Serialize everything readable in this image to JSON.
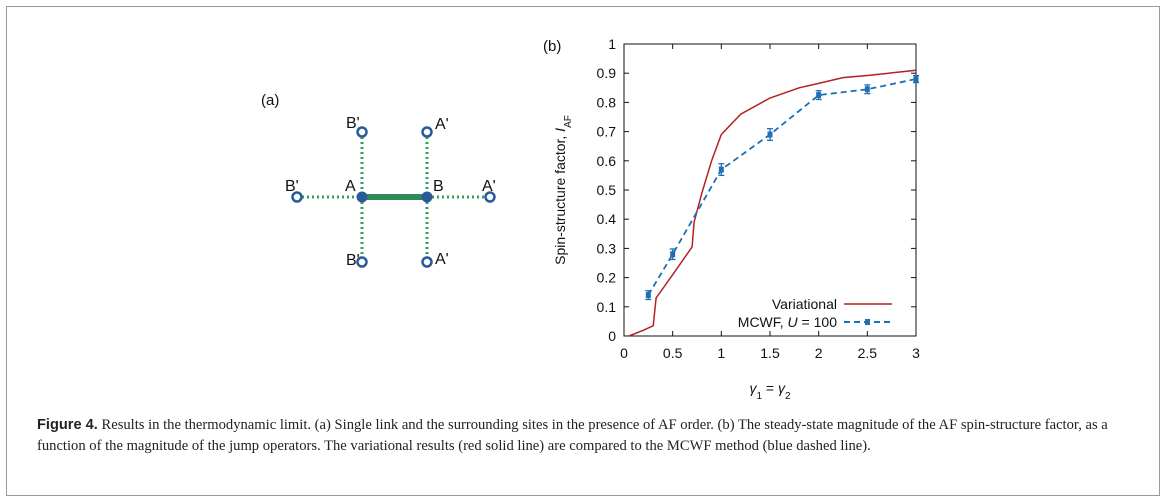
{
  "panel_a": {
    "label": "(a)",
    "sites": {
      "A": "A",
      "B": "B",
      "left_top": "B'",
      "left_out": "B'",
      "left_bottom": "B'",
      "right_top": "A'",
      "right_out": "A'",
      "right_bottom": "A'"
    },
    "colors": {
      "link": "#2e8b57",
      "dotted": "#3a9a5a",
      "site": "#2a5a9a"
    }
  },
  "panel_b": {
    "label": "(b)",
    "ylabel_main": "Spin-structure factor, ",
    "ylabel_sym": "I",
    "ylabel_sub": "AF",
    "xlabel_g1": "γ",
    "xlabel_s1": "1",
    "xlabel_eq": " = ",
    "xlabel_g2": "γ",
    "xlabel_s2": "2",
    "legend_variational": "Variational",
    "legend_mcwf_prefix": "MCWF, ",
    "legend_mcwf_u": "U",
    "legend_mcwf_suffix": " = 100"
  },
  "chart_data": {
    "type": "line",
    "xlim": [
      0,
      3
    ],
    "ylim": [
      0,
      1
    ],
    "xticks": [
      "0",
      "0.5",
      "1",
      "1.5",
      "2",
      "2.5",
      "3"
    ],
    "yticks": [
      "0",
      "0.1",
      "0.2",
      "0.3",
      "0.4",
      "0.5",
      "0.6",
      "0.7",
      "0.8",
      "0.9",
      "1"
    ],
    "legend": "bottom-right",
    "series": [
      {
        "name": "Variational",
        "color": "#b22222",
        "style": "solid",
        "x": [
          0.05,
          0.2,
          0.3,
          0.33,
          0.5,
          0.7,
          0.72,
          0.8,
          0.9,
          1.0,
          1.2,
          1.5,
          1.8,
          2.0,
          2.25,
          2.5,
          3.0
        ],
        "y": [
          0.0,
          0.02,
          0.035,
          0.13,
          0.21,
          0.305,
          0.39,
          0.49,
          0.6,
          0.69,
          0.76,
          0.815,
          0.85,
          0.865,
          0.885,
          0.892,
          0.91
        ]
      },
      {
        "name": "MCWF, U = 100",
        "color": "#1f6fb4",
        "style": "dashed",
        "x": [
          0.25,
          0.5,
          1.0,
          1.5,
          2.0,
          2.5,
          3.0
        ],
        "y": [
          0.14,
          0.28,
          0.57,
          0.69,
          0.825,
          0.845,
          0.88
        ],
        "err": [
          0.015,
          0.018,
          0.02,
          0.02,
          0.015,
          0.015,
          0.012
        ]
      }
    ]
  },
  "caption": {
    "label": "Figure 4.",
    "text": " Results in the thermodynamic limit. (a) Single link and the surrounding sites in the presence of AF order. (b) The steady-state magnitude of the AF spin-structure factor, as a function of the magnitude of the jump operators. The variational results (red solid line) are compared to the MCWF method (blue dashed line)."
  }
}
